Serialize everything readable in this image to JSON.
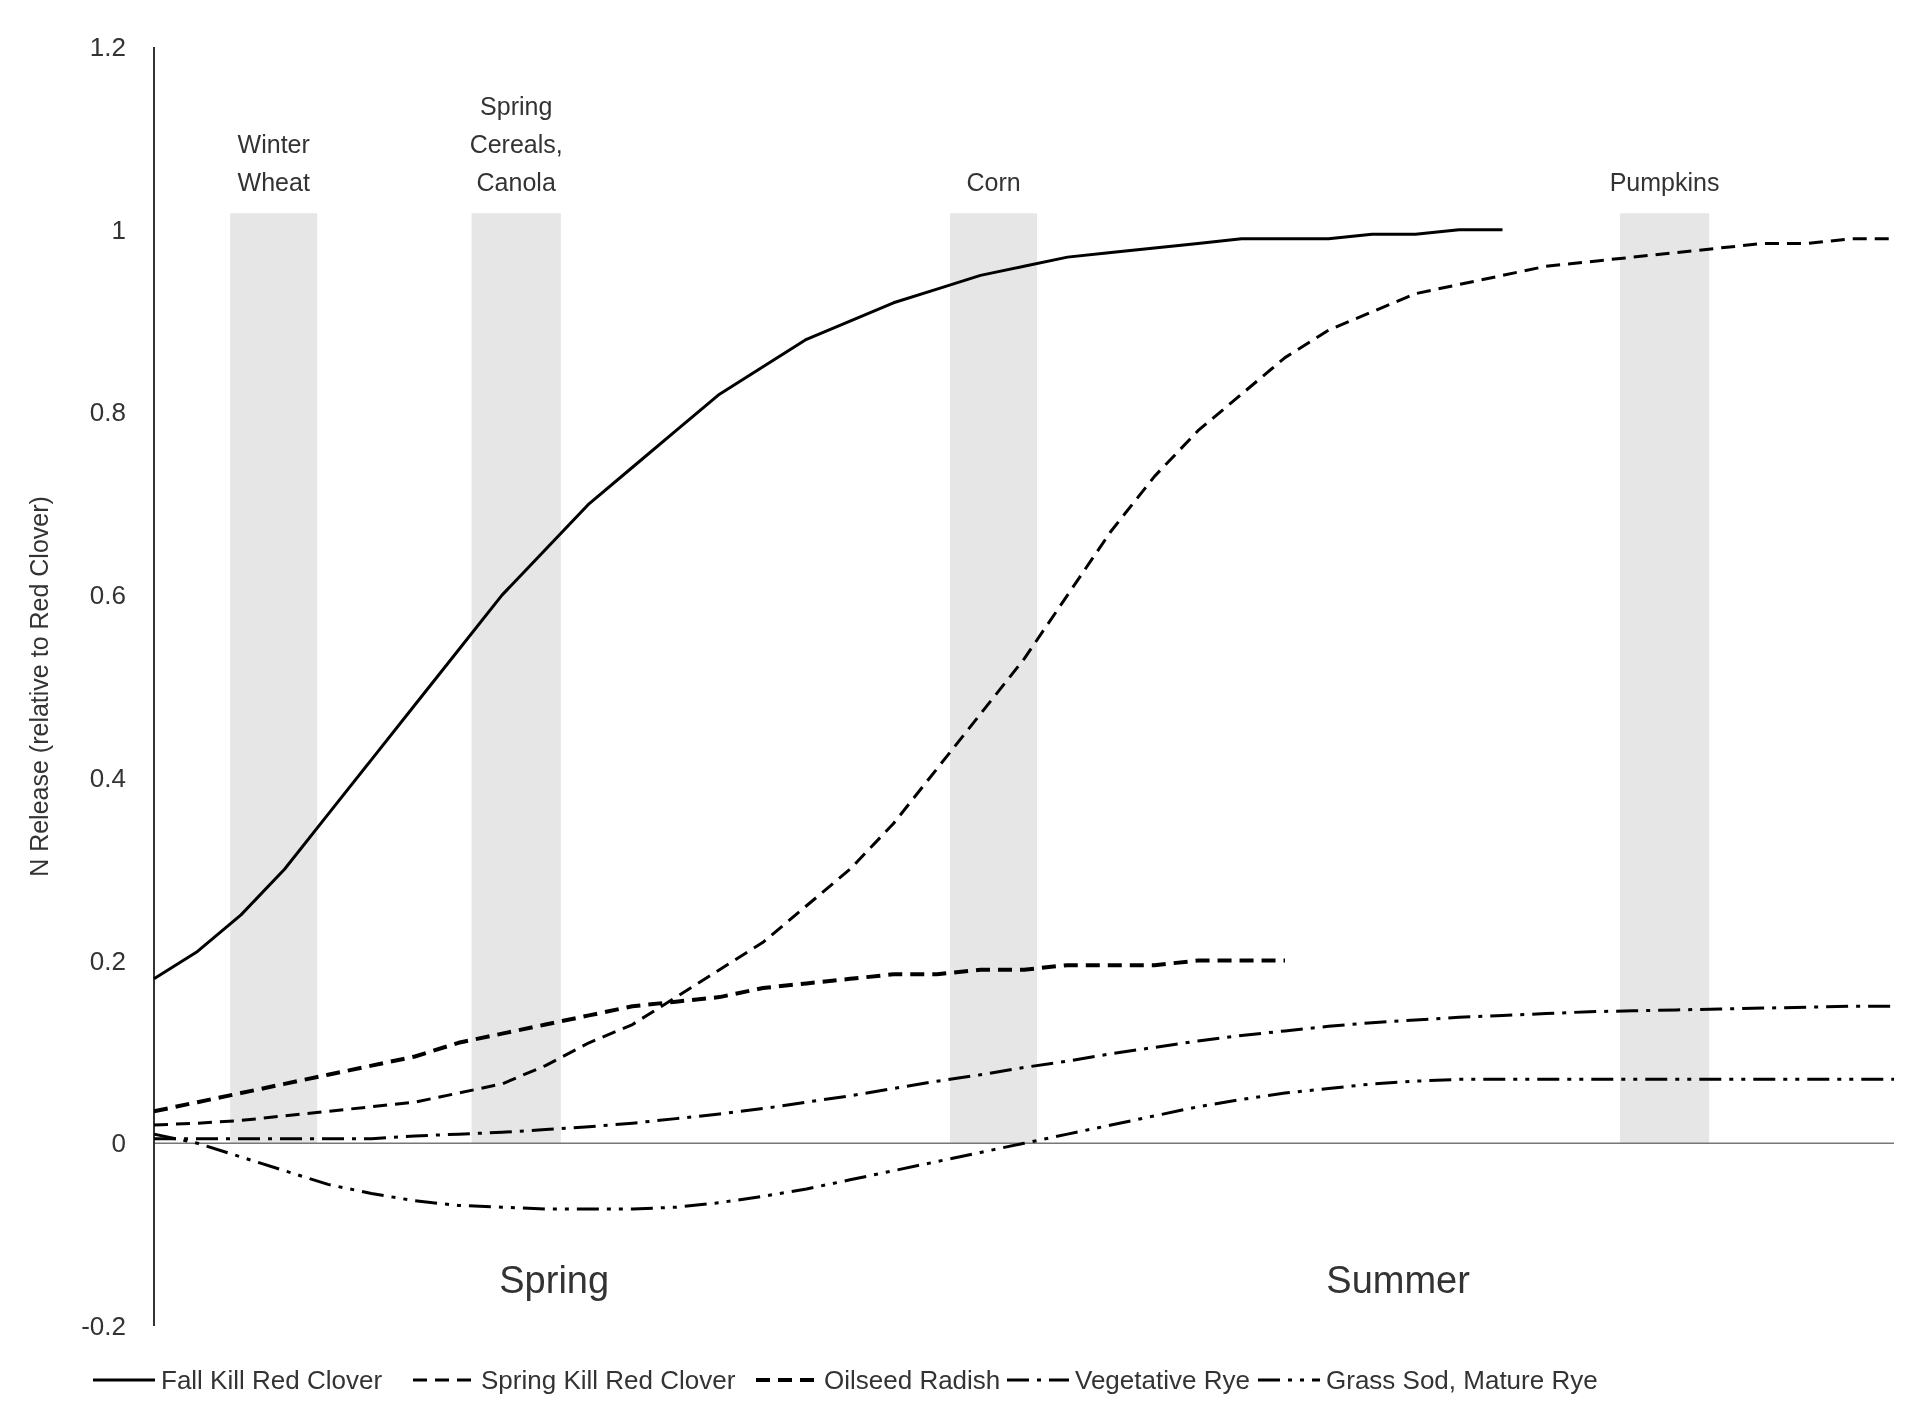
{
  "chart_data": {
    "type": "line",
    "ylabel": "N Release (relative to Red Clover)",
    "categories": [
      null,
      null,
      null,
      null,
      null,
      null,
      null,
      null,
      null,
      null,
      null,
      null,
      null,
      null,
      null,
      null,
      null,
      null,
      null,
      null,
      null,
      null,
      null,
      null,
      null,
      null,
      null,
      null,
      null,
      null,
      null,
      null,
      null,
      null,
      null,
      null,
      null,
      null,
      null,
      null,
      null
    ],
    "ref_lines": [
      {
        "axis": "y",
        "value": 0,
        "color": "#777777"
      }
    ],
    "series": [
      {
        "name": "Fall Kill Red Clover",
        "color": "#000000",
        "line_style": "solid",
        "values": [
          0.18,
          0.21,
          0.25,
          0.3,
          0.36,
          0.42,
          0.48,
          0.54,
          0.6,
          0.65,
          0.7,
          0.74,
          0.78,
          0.82,
          0.85,
          0.88,
          0.9,
          0.92,
          0.935,
          0.95,
          0.96,
          0.97,
          0.975,
          0.98,
          0.985,
          0.99,
          0.99,
          0.99,
          0.995,
          0.995,
          1,
          1,
          null,
          null,
          null,
          null,
          null,
          null,
          null,
          null,
          null
        ]
      },
      {
        "name": "Spring Kill Red Clover",
        "color": "#000000",
        "line_style": "dashed",
        "values": [
          0.02,
          0.022,
          0.025,
          0.03,
          0.035,
          0.04,
          0.045,
          0.055,
          0.065,
          0.085,
          0.11,
          0.13,
          0.16,
          0.19,
          0.22,
          0.26,
          0.3,
          0.35,
          0.41,
          0.47,
          0.53,
          0.6,
          0.67,
          0.73,
          0.78,
          0.82,
          0.86,
          0.89,
          0.91,
          0.93,
          0.94,
          0.95,
          0.96,
          0.965,
          0.97,
          0.975,
          0.98,
          0.985,
          0.985,
          0.99,
          0.99
        ]
      },
      {
        "name": "Oilseed Radish",
        "color": "#000000",
        "line_style": "dashed",
        "values": [
          0.035,
          0.045,
          0.055,
          0.065,
          0.075,
          0.085,
          0.095,
          0.11,
          0.12,
          0.13,
          0.14,
          0.15,
          0.155,
          0.16,
          0.17,
          0.175,
          0.18,
          0.185,
          0.185,
          0.19,
          0.19,
          0.195,
          0.195,
          0.195,
          0.2,
          0.2,
          0.2,
          null,
          null,
          null,
          null,
          null,
          null,
          null,
          null,
          null,
          null,
          null,
          null,
          null,
          null
        ]
      },
      {
        "name": "Vegetative Rye",
        "color": "#000000",
        "line_style": "dashdot",
        "values": [
          0.005,
          0.005,
          0.005,
          0.005,
          0.005,
          0.005,
          0.008,
          0.01,
          0.012,
          0.015,
          0.018,
          0.022,
          0.027,
          0.032,
          0.038,
          0.045,
          0.052,
          0.06,
          0.068,
          0.075,
          0.083,
          0.09,
          0.098,
          0.105,
          0.112,
          0.118,
          0.123,
          0.128,
          0.132,
          0.135,
          0.138,
          0.14,
          0.142,
          0.144,
          0.145,
          0.146,
          0.147,
          0.148,
          0.149,
          0.15,
          0.15
        ]
      },
      {
        "name": "Grass Sod, Mature Rye",
        "color": "#000000",
        "line_style": "dashdotdot",
        "values": [
          0.01,
          0,
          -0.015,
          -0.03,
          -0.045,
          -0.055,
          -0.063,
          -0.068,
          -0.07,
          -0.072,
          -0.072,
          -0.072,
          -0.07,
          -0.065,
          -0.058,
          -0.05,
          -0.04,
          -0.03,
          -0.02,
          -0.01,
          0,
          0.01,
          0.02,
          0.03,
          0.04,
          0.048,
          0.055,
          0.06,
          0.065,
          0.068,
          0.07,
          0.07,
          0.07,
          0.07,
          0.07,
          0.07,
          0.07,
          0.07,
          0.07,
          0.07,
          0.07
        ]
      }
    ],
    "annotations": [
      "Winter\nWheat",
      "Spring\nCereals,\nCanola",
      "Corn",
      "Pumpkins",
      "Spring",
      "Summer"
    ],
    "ylim": [
      -0.2,
      1.2
    ],
    "yticks": [
      -0.2,
      0,
      0.2,
      0.4,
      0.6,
      0.8,
      1,
      1.2
    ],
    "tick_labels": "y",
    "legend": "bottom"
  }
}
